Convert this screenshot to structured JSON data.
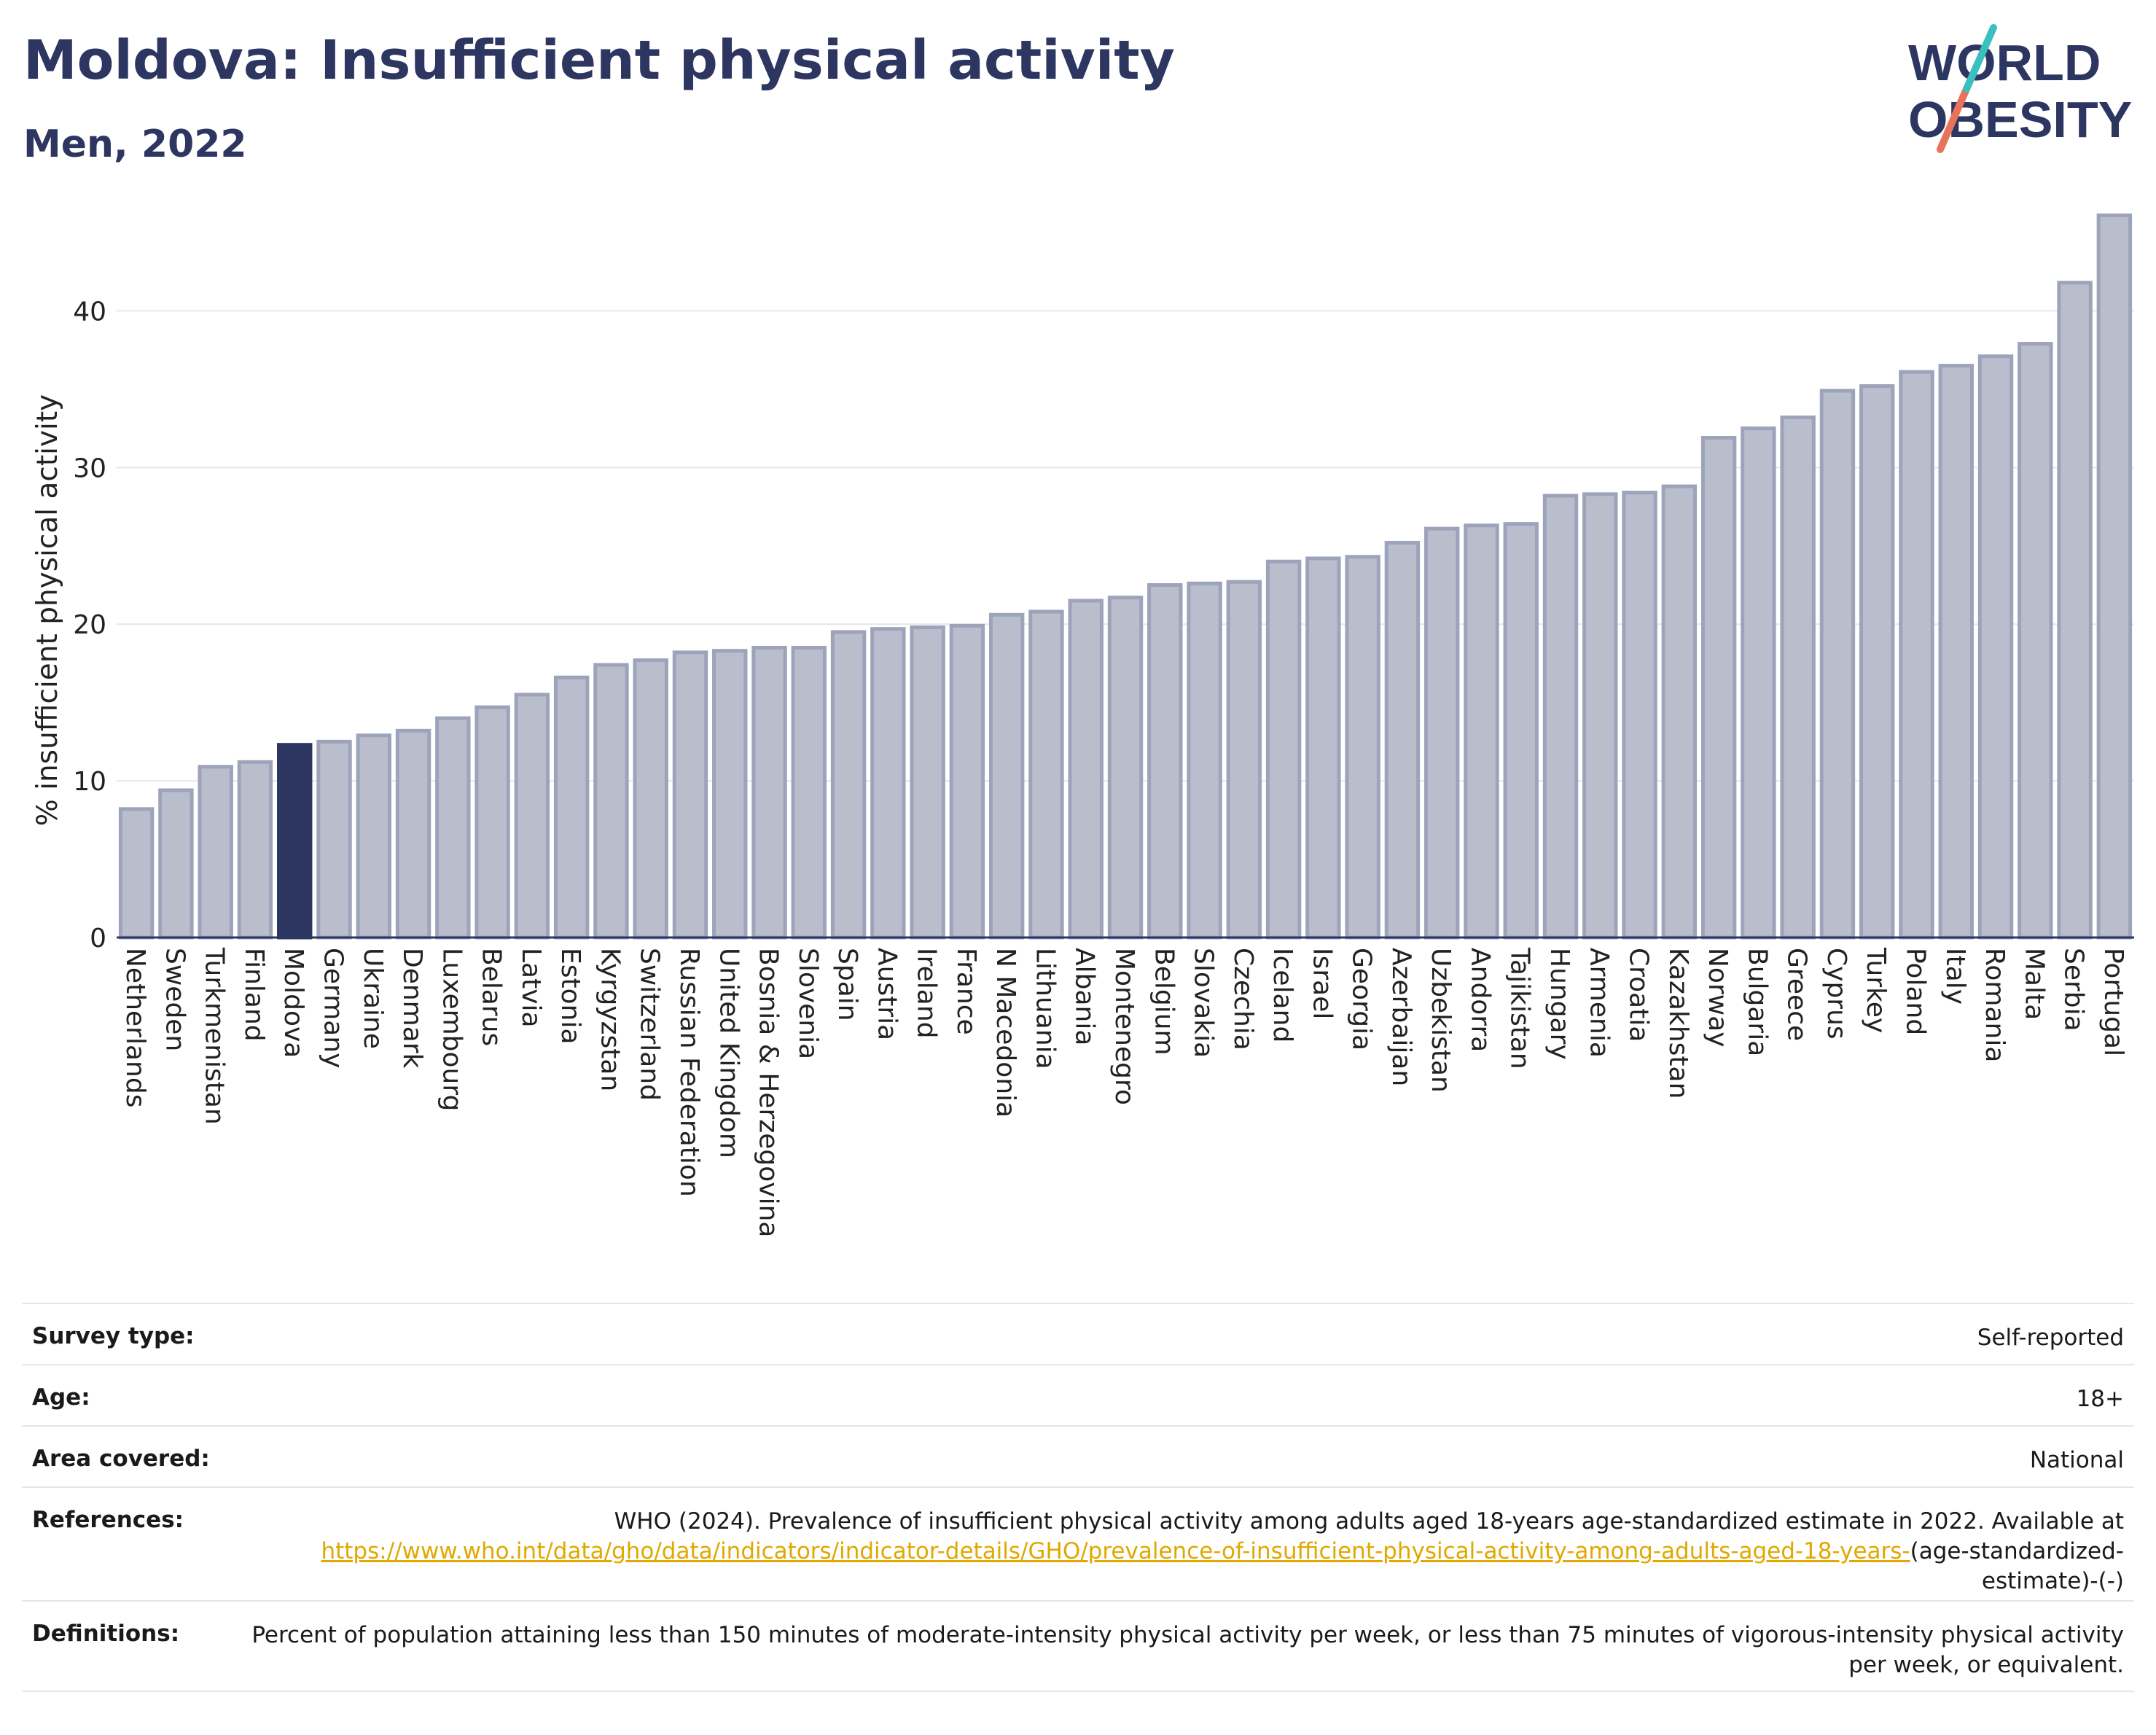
{
  "title": "Moldova: Insufficient physical activity",
  "subtitle": "Men, 2022",
  "logo": {
    "line1": "WORLD",
    "line2": "OBESITY",
    "accent_teal": "#3bbfbf",
    "accent_coral": "#e8735a"
  },
  "colors": {
    "bar_fill": "#b9bdcc",
    "bar_stroke": "#9da3bb",
    "highlight": "#2d3561",
    "title": "#2d3561",
    "grid": "#e6e6e6",
    "link": "#e0a800"
  },
  "chart_data": {
    "type": "bar",
    "ylabel": "% insufficient physical activity",
    "ylim": [
      0,
      47
    ],
    "yticks": [
      0,
      10,
      20,
      30,
      40
    ],
    "grid": true,
    "highlight": "Moldova",
    "categories": [
      "Netherlands",
      "Sweden",
      "Turkmenistan",
      "Finland",
      "Moldova",
      "Germany",
      "Ukraine",
      "Denmark",
      "Luxembourg",
      "Belarus",
      "Latvia",
      "Estonia",
      "Kyrgyzstan",
      "Switzerland",
      "Russian Federation",
      "United Kingdom",
      "Bosnia & Herzegovina",
      "Slovenia",
      "Spain",
      "Austria",
      "Ireland",
      "France",
      "N Macedonia",
      "Lithuania",
      "Albania",
      "Montenegro",
      "Belgium",
      "Slovakia",
      "Czechia",
      "Iceland",
      "Israel",
      "Georgia",
      "Azerbaijan",
      "Uzbekistan",
      "Andorra",
      "Tajikistan",
      "Hungary",
      "Armenia",
      "Croatia",
      "Kazakhstan",
      "Norway",
      "Bulgaria",
      "Greece",
      "Cyprus",
      "Turkey",
      "Poland",
      "Italy",
      "Romania",
      "Malta",
      "Serbia",
      "Portugal"
    ],
    "values": [
      8.2,
      9.4,
      10.9,
      11.2,
      12.3,
      12.5,
      12.9,
      13.2,
      14.0,
      14.7,
      15.5,
      16.6,
      17.4,
      17.7,
      18.2,
      18.3,
      18.5,
      18.5,
      19.5,
      19.7,
      19.8,
      19.9,
      20.6,
      20.8,
      21.5,
      21.7,
      22.5,
      22.6,
      22.7,
      24.0,
      24.2,
      24.3,
      25.2,
      26.1,
      26.3,
      26.4,
      28.2,
      28.3,
      28.4,
      28.8,
      31.9,
      32.5,
      33.2,
      34.9,
      35.2,
      36.1,
      36.5,
      37.1,
      37.9,
      41.8,
      46.1
    ]
  },
  "info": {
    "survey_label": "Survey type:",
    "survey_value": "Self-reported",
    "age_label": "Age:",
    "age_value": "18+",
    "area_label": "Area covered:",
    "area_value": "National",
    "ref_label": "References:",
    "ref_text": "WHO (2024). Prevalence of insufficient physical activity among adults aged 18-years age-standardized estimate in 2022. Available at",
    "ref_link": "https://www.who.int/data/gho/data/indicators/indicator-details/GHO/prevalence-of-insufficient-physical-activity-among-adults-aged-18-years-",
    "ref_suffix": "(age-standardized-estimate)-(-)",
    "def_label": "Definitions:",
    "def_text": "Percent of population attaining less than 150 minutes of moderate-intensity physical activity per week, or less than 75 minutes of vigorous-intensity physical activity per week, or equivalent."
  }
}
